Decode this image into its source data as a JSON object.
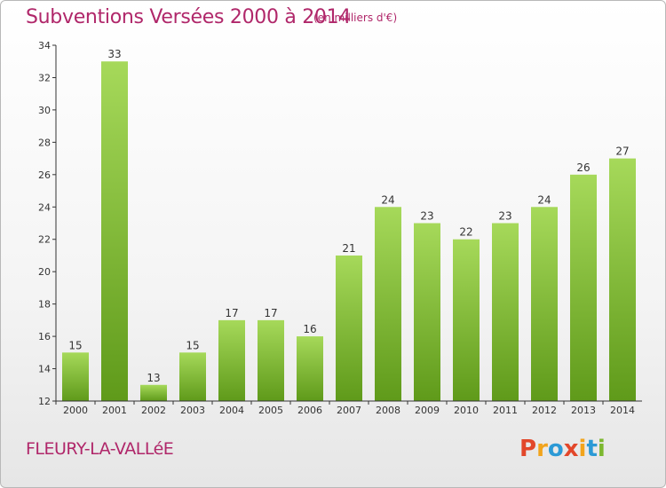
{
  "header": {
    "title": "Subventions Versées 2000 à 2014",
    "subtitle": "(en milliers d'€)"
  },
  "footer": {
    "commune": "FLEURY-LA-VALLéE",
    "logo_text": "Proxiti",
    "logo_colors": [
      "#e2472a",
      "#f2a41c",
      "#2c9ad6",
      "#e2472a",
      "#f2a41c",
      "#2c9ad6",
      "#7cb82f"
    ]
  },
  "colors": {
    "title": "#b0276a",
    "bar_light": "#a6d95a",
    "bar_dark": "#5f9a1a",
    "axis": "#333333"
  },
  "chart_data": {
    "type": "bar",
    "title": "Subventions Versées 2000 à 2014",
    "subtitle": "(en milliers d'€)",
    "categories": [
      "2000",
      "2001",
      "2002",
      "2003",
      "2004",
      "2005",
      "2006",
      "2007",
      "2008",
      "2009",
      "2010",
      "2011",
      "2012",
      "2013",
      "2014"
    ],
    "values": [
      15,
      33,
      13,
      15,
      17,
      17,
      16,
      21,
      24,
      23,
      22,
      23,
      24,
      26,
      27
    ],
    "ylim": [
      12,
      34
    ],
    "yticks": [
      12,
      14,
      16,
      18,
      20,
      22,
      24,
      26,
      28,
      30,
      32,
      34
    ],
    "grid": false,
    "data_labels": true
  }
}
